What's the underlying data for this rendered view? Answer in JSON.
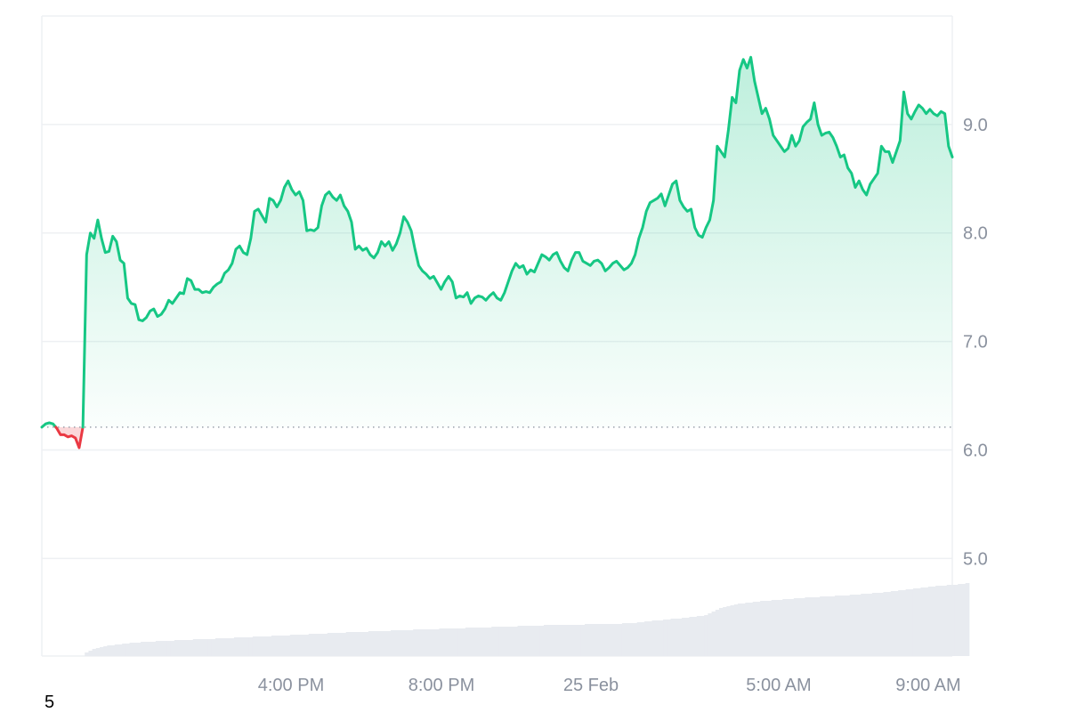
{
  "corner_label": "5",
  "chart_data": {
    "type": "area",
    "title": "",
    "xlabel": "",
    "ylabel": "",
    "x_ticks": [
      "4:00 PM",
      "8:00 PM",
      "25 Feb",
      "5:00 AM",
      "9:00 AM"
    ],
    "y_ticks": [
      "5.0",
      "6.0",
      "7.0",
      "8.0",
      "9.0"
    ],
    "ylim": [
      4.1,
      10.0
    ],
    "baseline": 6.21,
    "grid": true,
    "legend": "none",
    "colors": {
      "up": "#16c784",
      "down": "#ea3943",
      "grid": "#eef0f3",
      "volume": "#e8ebf0",
      "baseline": "#9aa1ab",
      "tick": "#8a919e"
    },
    "series": [
      {
        "values": [
          6.21,
          6.24,
          6.25,
          6.24,
          6.2,
          6.14,
          6.14,
          6.12,
          6.13,
          6.11,
          6.02,
          6.21,
          7.8,
          8.0,
          7.95,
          8.12,
          7.95,
          7.82,
          7.83,
          7.97,
          7.92,
          7.75,
          7.72,
          7.4,
          7.35,
          7.34,
          7.2,
          7.19,
          7.22,
          7.28,
          7.3,
          7.23,
          7.25,
          7.3,
          7.38,
          7.35,
          7.4,
          7.45,
          7.44,
          7.58,
          7.56,
          7.48,
          7.48,
          7.45,
          7.46,
          7.45,
          7.5,
          7.53,
          7.55,
          7.63,
          7.66,
          7.72,
          7.85,
          7.88,
          7.82,
          7.8,
          7.95,
          8.2,
          8.22,
          8.16,
          8.1,
          8.32,
          8.3,
          8.24,
          8.3,
          8.42,
          8.48,
          8.4,
          8.35,
          8.38,
          8.3,
          8.02,
          8.03,
          8.02,
          8.05,
          8.25,
          8.35,
          8.38,
          8.33,
          8.3,
          8.35,
          8.25,
          8.2,
          8.1,
          7.85,
          7.88,
          7.84,
          7.86,
          7.8,
          7.77,
          7.82,
          7.92,
          7.88,
          7.92,
          7.84,
          7.9,
          8.0,
          8.15,
          8.1,
          8.02,
          7.85,
          7.7,
          7.65,
          7.62,
          7.58,
          7.6,
          7.54,
          7.48,
          7.55,
          7.6,
          7.55,
          7.4,
          7.42,
          7.41,
          7.45,
          7.35,
          7.4,
          7.42,
          7.41,
          7.38,
          7.42,
          7.45,
          7.4,
          7.38,
          7.45,
          7.55,
          7.65,
          7.72,
          7.68,
          7.7,
          7.62,
          7.66,
          7.64,
          7.72,
          7.8,
          7.78,
          7.75,
          7.8,
          7.82,
          7.74,
          7.68,
          7.65,
          7.75,
          7.82,
          7.82,
          7.74,
          7.72,
          7.7,
          7.74,
          7.75,
          7.72,
          7.65,
          7.68,
          7.72,
          7.74,
          7.7,
          7.66,
          7.68,
          7.72,
          7.8,
          7.95,
          8.05,
          8.2,
          8.28,
          8.3,
          8.32,
          8.36,
          8.25,
          8.35,
          8.45,
          8.48,
          8.3,
          8.24,
          8.2,
          8.22,
          8.05,
          7.98,
          7.96,
          8.05,
          8.12,
          8.3,
          8.8,
          8.75,
          8.7,
          8.95,
          9.25,
          9.2,
          9.5,
          9.6,
          9.52,
          9.62,
          9.4,
          9.25,
          9.1,
          9.15,
          9.05,
          8.9,
          8.85,
          8.8,
          8.75,
          8.78,
          8.9,
          8.8,
          8.85,
          8.98,
          9.02,
          9.05,
          9.2,
          9.0,
          8.9,
          8.92,
          8.93,
          8.88,
          8.8,
          8.7,
          8.72,
          8.6,
          8.55,
          8.42,
          8.48,
          8.4,
          8.35,
          8.45,
          8.5,
          8.55,
          8.8,
          8.75,
          8.75,
          8.65,
          8.75,
          8.85,
          9.3,
          9.1,
          9.05,
          9.12,
          9.18,
          9.15,
          9.1,
          9.14,
          9.1,
          9.08,
          9.12,
          9.1,
          8.8,
          8.7
        ]
      }
    ],
    "volume": [
      0,
      0,
      0,
      0,
      0,
      0,
      0,
      0,
      0,
      0,
      0,
      0,
      0.04,
      0.06,
      0.08,
      0.09,
      0.1,
      0.11,
      0.12,
      0.12,
      0.13,
      0.13,
      0.14,
      0.14,
      0.15,
      0.15,
      0.15,
      0.16,
      0.16,
      0.16,
      0.16,
      0.17,
      0.17,
      0.17,
      0.17,
      0.17,
      0.18,
      0.18,
      0.18,
      0.18,
      0.18,
      0.19,
      0.19,
      0.19,
      0.19,
      0.19,
      0.19,
      0.2,
      0.2,
      0.2,
      0.2,
      0.2,
      0.21,
      0.21,
      0.21,
      0.21,
      0.21,
      0.22,
      0.22,
      0.22,
      0.22,
      0.22,
      0.23,
      0.23,
      0.23,
      0.23,
      0.23,
      0.24,
      0.24,
      0.24,
      0.24,
      0.24,
      0.25,
      0.25,
      0.25,
      0.25,
      0.25,
      0.26,
      0.26,
      0.26,
      0.26,
      0.26,
      0.27,
      0.27,
      0.27,
      0.27,
      0.27,
      0.27,
      0.28,
      0.28,
      0.28,
      0.28,
      0.28,
      0.28,
      0.29,
      0.29,
      0.29,
      0.29,
      0.29,
      0.29,
      0.3,
      0.3,
      0.3,
      0.3,
      0.3,
      0.3,
      0.3,
      0.31,
      0.31,
      0.31,
      0.31,
      0.31,
      0.31,
      0.31,
      0.32,
      0.32,
      0.32,
      0.32,
      0.32,
      0.32,
      0.32,
      0.33,
      0.33,
      0.33,
      0.33,
      0.33,
      0.33,
      0.33,
      0.34,
      0.34,
      0.34,
      0.34,
      0.34,
      0.34,
      0.34,
      0.35,
      0.35,
      0.35,
      0.35,
      0.35,
      0.35,
      0.35,
      0.35,
      0.35,
      0.35,
      0.35,
      0.36,
      0.36,
      0.36,
      0.36,
      0.36,
      0.36,
      0.36,
      0.36,
      0.36,
      0.36,
      0.37,
      0.37,
      0.37,
      0.37,
      0.38,
      0.38,
      0.39,
      0.39,
      0.4,
      0.4,
      0.4,
      0.41,
      0.41,
      0.42,
      0.42,
      0.42,
      0.43,
      0.43,
      0.44,
      0.44,
      0.45,
      0.45,
      0.46,
      0.48,
      0.5,
      0.52,
      0.54,
      0.55,
      0.56,
      0.57,
      0.58,
      0.59,
      0.59,
      0.6,
      0.6,
      0.61,
      0.61,
      0.62,
      0.62,
      0.62,
      0.63,
      0.63,
      0.63,
      0.64,
      0.64,
      0.64,
      0.65,
      0.65,
      0.65,
      0.66,
      0.66,
      0.66,
      0.66,
      0.67,
      0.67,
      0.67,
      0.67,
      0.68,
      0.68,
      0.68,
      0.68,
      0.69,
      0.69,
      0.69,
      0.7,
      0.7,
      0.7,
      0.71,
      0.71,
      0.71,
      0.72,
      0.72,
      0.73,
      0.73,
      0.74,
      0.74,
      0.75,
      0.75,
      0.76,
      0.76,
      0.77,
      0.77,
      0.78,
      0.78,
      0.79,
      0.79,
      0.79,
      0.8,
      0.8,
      0.8,
      0.81,
      0.81,
      0.82
    ]
  }
}
